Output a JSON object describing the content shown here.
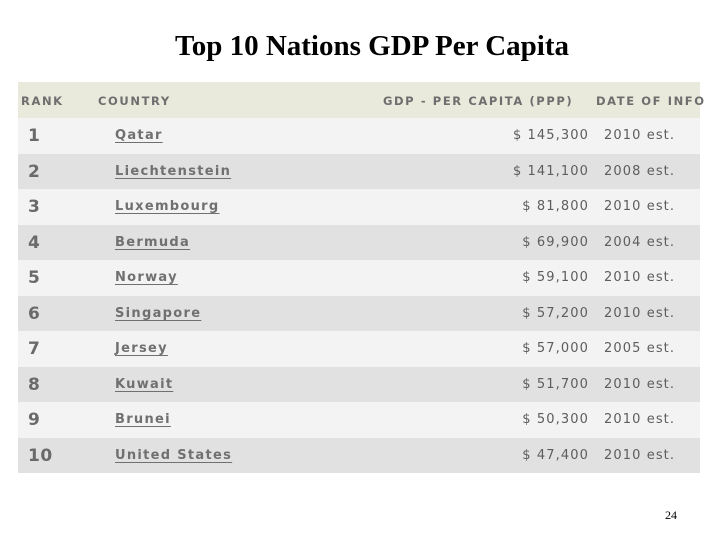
{
  "title": "Top 10 Nations GDP Per Capita",
  "table": {
    "headers": {
      "rank": "RANK",
      "country": "COUNTRY",
      "gdp": "GDP - PER CAPITA (PPP)",
      "date": "DATE OF INFO"
    },
    "rows": [
      {
        "rank": "1",
        "country": "Qatar",
        "gdp": "$ 145,300",
        "date": "2010 est."
      },
      {
        "rank": "2",
        "country": "Liechtenstein",
        "gdp": "$ 141,100",
        "date": "2008 est."
      },
      {
        "rank": "3",
        "country": "Luxembourg",
        "gdp": "$ 81,800",
        "date": "2010 est."
      },
      {
        "rank": "4",
        "country": "Bermuda",
        "gdp": "$ 69,900",
        "date": "2004 est."
      },
      {
        "rank": "5",
        "country": "Norway",
        "gdp": "$ 59,100",
        "date": "2010 est."
      },
      {
        "rank": "6",
        "country": "Singapore",
        "gdp": "$ 57,200",
        "date": "2010 est."
      },
      {
        "rank": "7",
        "country": "Jersey",
        "gdp": "$ 57,000",
        "date": "2005 est."
      },
      {
        "rank": "8",
        "country": "Kuwait",
        "gdp": "$ 51,700",
        "date": "2010 est."
      },
      {
        "rank": "9",
        "country": "Brunei",
        "gdp": "$ 50,300",
        "date": "2010 est."
      },
      {
        "rank": "10",
        "country": "United States",
        "gdp": "$ 47,400",
        "date": "2010 est."
      }
    ]
  },
  "page_number": "24",
  "colors": {
    "header_bg": "#e9e9dc",
    "row_odd_bg": "#f3f3f3",
    "row_even_bg": "#e1e1e1",
    "text": "#6a6a6a"
  }
}
